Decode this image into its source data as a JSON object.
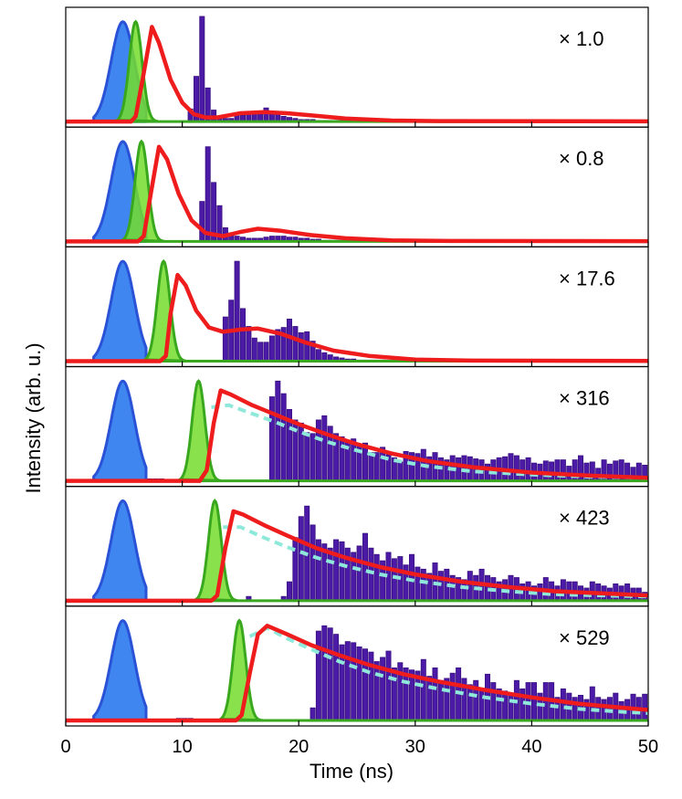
{
  "chart_data": {
    "type": "histogram-with-fits",
    "xlabel": "Time (ns)",
    "ylabel": "Intensity (arb. u.)",
    "xlim": [
      0,
      50
    ],
    "xticks": [
      0,
      10,
      20,
      30,
      40,
      50
    ],
    "tick_labels": [
      "0",
      "10",
      "20",
      "30",
      "40",
      "50"
    ],
    "colors": {
      "bars": "#4b1aa6",
      "bar_edge": "#3a1080",
      "pump": "#3f86f0",
      "pump_edge": "#2a52d6",
      "green": "#39a81f",
      "green_fill": "#74dd2c",
      "fit": "#ee1c1c",
      "dashed": "#8fe9da"
    },
    "panels": [
      {
        "scale_label": "× 1.0",
        "onset": 5.6,
        "bars": [
          0,
          0,
          0,
          0,
          0,
          0,
          0,
          0,
          0,
          0,
          0,
          0,
          0,
          0,
          0,
          0,
          0,
          0,
          0,
          0,
          0,
          0.12,
          0.43,
          1.0,
          0.32,
          0.11,
          0.04,
          0.03,
          0.03,
          0.06,
          0.06,
          0.08,
          0.09,
          0.1,
          0.13,
          0.09,
          0.08,
          0.05,
          0.04,
          0.03,
          0.02,
          0.02,
          0.02,
          0.01,
          0.01,
          0.01,
          0.01,
          0.01,
          0.01,
          0,
          0,
          0,
          0,
          0,
          0,
          0,
          0,
          0,
          0,
          0,
          0,
          0,
          0,
          0,
          0,
          0,
          0,
          0,
          0,
          0,
          0,
          0,
          0,
          0,
          0,
          0,
          0,
          0,
          0,
          0,
          0,
          0,
          0,
          0,
          0,
          0,
          0,
          0,
          0,
          0,
          0,
          0,
          0,
          0,
          0,
          0,
          0,
          0,
          0,
          0,
          0,
          0,
          0,
          0
        ],
        "fit": [
          [
            5.6,
            0
          ],
          [
            6.0,
            0.05
          ],
          [
            6.6,
            0.4
          ],
          [
            7.4,
            0.9
          ],
          [
            8.0,
            0.75
          ],
          [
            9.0,
            0.4
          ],
          [
            10.0,
            0.18
          ],
          [
            11.0,
            0.07
          ],
          [
            12.0,
            0.04
          ],
          [
            13.0,
            0.04
          ],
          [
            15.0,
            0.08
          ],
          [
            17.0,
            0.09
          ],
          [
            19.0,
            0.08
          ],
          [
            21.0,
            0.06
          ],
          [
            24.0,
            0.03
          ],
          [
            28.0,
            0.01
          ],
          [
            32.0,
            0.005
          ],
          [
            50.0,
            0.002
          ]
        ],
        "dashed": null
      },
      {
        "scale_label": "× 0.8",
        "onset": 6.1,
        "bars": [
          0,
          0,
          0,
          0,
          0,
          0,
          0,
          0,
          0,
          0,
          0,
          0,
          0,
          0,
          0,
          0,
          0,
          0,
          0,
          0,
          0,
          0,
          0,
          0.38,
          0.9,
          0.56,
          0.34,
          0.13,
          0.08,
          0.05,
          0.04,
          0.03,
          0.03,
          0.03,
          0.04,
          0.05,
          0.05,
          0.05,
          0.04,
          0.04,
          0.03,
          0.03,
          0.02,
          0.02,
          0.01,
          0.01,
          0.01,
          0.01,
          0.01,
          0,
          0,
          0,
          0,
          0,
          0,
          0,
          0,
          0,
          0,
          0,
          0,
          0,
          0,
          0,
          0,
          0,
          0,
          0,
          0,
          0,
          0,
          0,
          0,
          0,
          0,
          0,
          0,
          0,
          0,
          0,
          0,
          0,
          0,
          0,
          0,
          0,
          0,
          0,
          0,
          0,
          0,
          0,
          0,
          0,
          0,
          0,
          0,
          0,
          0,
          0,
          0,
          0,
          0,
          0
        ],
        "fit": [
          [
            6.2,
            0
          ],
          [
            6.7,
            0.05
          ],
          [
            7.3,
            0.45
          ],
          [
            8.0,
            0.9
          ],
          [
            8.7,
            0.78
          ],
          [
            9.7,
            0.45
          ],
          [
            10.8,
            0.2
          ],
          [
            12.0,
            0.08
          ],
          [
            13.5,
            0.05
          ],
          [
            15.0,
            0.09
          ],
          [
            16.5,
            0.12
          ],
          [
            18.5,
            0.1
          ],
          [
            21.0,
            0.06
          ],
          [
            24.0,
            0.03
          ],
          [
            28.0,
            0.01
          ],
          [
            33.0,
            0.004
          ],
          [
            50.0,
            0.002
          ]
        ],
        "dashed": null
      },
      {
        "scale_label": "× 17.6",
        "onset": 8.0,
        "bars": [
          0,
          0,
          0,
          0,
          0,
          0,
          0,
          0,
          0,
          0,
          0,
          0,
          0,
          0,
          0,
          0,
          0,
          0,
          0,
          0,
          0,
          0,
          0,
          0,
          0,
          0,
          0,
          0.42,
          0.58,
          0.95,
          0.5,
          0.33,
          0.22,
          0.18,
          0.18,
          0.24,
          0.3,
          0.32,
          0.4,
          0.33,
          0.27,
          0.28,
          0.19,
          0.11,
          0.08,
          0.06,
          0.04,
          0.03,
          0.02,
          0.02,
          0.01,
          0.01,
          0.01,
          0.01,
          0.01,
          0,
          0,
          0,
          0,
          0,
          0,
          0,
          0,
          0,
          0,
          0,
          0,
          0,
          0,
          0,
          0,
          0,
          0,
          0,
          0,
          0,
          0,
          0,
          0,
          0,
          0,
          0,
          0,
          0,
          0,
          0,
          0,
          0,
          0,
          0,
          0,
          0,
          0,
          0,
          0,
          0,
          0,
          0,
          0,
          0,
          0,
          0,
          0,
          0
        ],
        "fit": [
          [
            8.1,
            0
          ],
          [
            8.6,
            0.05
          ],
          [
            9.0,
            0.45
          ],
          [
            9.6,
            0.82
          ],
          [
            10.3,
            0.72
          ],
          [
            11.2,
            0.48
          ],
          [
            12.3,
            0.32
          ],
          [
            13.5,
            0.28
          ],
          [
            15.0,
            0.3
          ],
          [
            16.5,
            0.31
          ],
          [
            18.5,
            0.26
          ],
          [
            20.5,
            0.18
          ],
          [
            23.0,
            0.1
          ],
          [
            26.0,
            0.05
          ],
          [
            30.0,
            0.015
          ],
          [
            35.0,
            0.005
          ],
          [
            50.0,
            0.002
          ]
        ],
        "dashed": null
      },
      {
        "scale_label": "× 316",
        "onset": 11.0,
        "bars": [
          0,
          0,
          0,
          0,
          0,
          0,
          0,
          0,
          0,
          0,
          0,
          0,
          0,
          0,
          0.02,
          0.02,
          0.02,
          0,
          0,
          0,
          0,
          0,
          0,
          0,
          0,
          0,
          0,
          0,
          0,
          0,
          0,
          0,
          0,
          0,
          0,
          0.8,
          0.95,
          0.83,
          0.68,
          0.58,
          0.55,
          0.46,
          0.45,
          0.58,
          0.62,
          0.52,
          0.45,
          0.42,
          0.38,
          0.4,
          0.33,
          0.36,
          0.27,
          0.27,
          0.32,
          0.25,
          0.22,
          0.18,
          0.28,
          0.27,
          0.26,
          0.3,
          0.23,
          0.27,
          0.22,
          0.2,
          0.24,
          0.22,
          0.24,
          0.23,
          0.21,
          0.2,
          0.16,
          0.2,
          0.22,
          0.23,
          0.26,
          0.24,
          0.2,
          0.22,
          0.17,
          0.16,
          0.19,
          0.18,
          0.2,
          0.2,
          0.14,
          0.2,
          0.24,
          0.17,
          0.18,
          0.12,
          0.2,
          0.16,
          0.19,
          0.2,
          0.17,
          0.13,
          0.17,
          0.15
        ],
        "fit": [
          [
            11.5,
            0
          ],
          [
            12.1,
            0.1
          ],
          [
            12.7,
            0.55
          ],
          [
            13.3,
            0.86
          ],
          [
            14.2,
            0.82
          ],
          [
            16.0,
            0.72
          ],
          [
            18.0,
            0.63
          ],
          [
            20.0,
            0.54
          ],
          [
            22.5,
            0.44
          ],
          [
            25.0,
            0.35
          ],
          [
            28.0,
            0.26
          ],
          [
            31.0,
            0.19
          ],
          [
            35.0,
            0.13
          ],
          [
            40.0,
            0.08
          ],
          [
            45.0,
            0.05
          ],
          [
            50.0,
            0.03
          ]
        ],
        "dashed": [
          [
            12.5,
            0.7
          ],
          [
            14.0,
            0.72
          ],
          [
            16.0,
            0.64
          ],
          [
            18.0,
            0.56
          ],
          [
            20.0,
            0.47
          ],
          [
            22.5,
            0.37
          ],
          [
            25.0,
            0.29
          ],
          [
            28.0,
            0.2
          ],
          [
            31.0,
            0.14
          ],
          [
            35.0,
            0.09
          ],
          [
            40.0,
            0.06
          ],
          [
            45.0,
            0.04
          ],
          [
            50.0,
            0.03
          ]
        ]
      },
      {
        "scale_label": "× 423",
        "onset": 12.4,
        "bars": [
          0,
          0,
          0,
          0,
          0,
          0,
          0,
          0,
          0,
          0,
          0,
          0,
          0,
          0,
          0,
          0,
          0,
          0,
          0,
          0,
          0,
          0,
          0,
          0,
          0,
          0,
          0,
          0,
          0,
          0,
          0,
          0.04,
          0,
          0,
          0,
          0,
          0,
          0.04,
          0.18,
          0.6,
          0.8,
          0.9,
          0.72,
          0.58,
          0.54,
          0.5,
          0.58,
          0.56,
          0.5,
          0.46,
          0.52,
          0.64,
          0.5,
          0.44,
          0.38,
          0.46,
          0.4,
          0.42,
          0.34,
          0.44,
          0.32,
          0.3,
          0.26,
          0.36,
          0.28,
          0.3,
          0.24,
          0.22,
          0.2,
          0.28,
          0.24,
          0.3,
          0.24,
          0.22,
          0.18,
          0.2,
          0.24,
          0.22,
          0.16,
          0.18,
          0.14,
          0.16,
          0.22,
          0.18,
          0.14,
          0.2,
          0.18,
          0.18,
          0.14,
          0.12,
          0.18,
          0.16,
          0.14,
          0.12,
          0.16,
          0.14,
          0.16,
          0.12,
          0.12,
          0.08
        ],
        "fit": [
          [
            12.5,
            0
          ],
          [
            13.0,
            0.05
          ],
          [
            13.7,
            0.5
          ],
          [
            14.4,
            0.85
          ],
          [
            15.2,
            0.82
          ],
          [
            17.0,
            0.72
          ],
          [
            19.0,
            0.62
          ],
          [
            21.5,
            0.5
          ],
          [
            24.0,
            0.41
          ],
          [
            27.0,
            0.32
          ],
          [
            30.0,
            0.25
          ],
          [
            34.0,
            0.18
          ],
          [
            38.0,
            0.13
          ],
          [
            42.0,
            0.09
          ],
          [
            46.0,
            0.07
          ],
          [
            50.0,
            0.05
          ]
        ],
        "dashed": [
          [
            13.5,
            0.7
          ],
          [
            15.0,
            0.7
          ],
          [
            17.0,
            0.6
          ],
          [
            19.0,
            0.51
          ],
          [
            21.5,
            0.41
          ],
          [
            24.0,
            0.33
          ],
          [
            27.0,
            0.25
          ],
          [
            30.0,
            0.19
          ],
          [
            34.0,
            0.13
          ],
          [
            38.0,
            0.09
          ],
          [
            42.0,
            0.06
          ],
          [
            46.0,
            0.05
          ],
          [
            50.0,
            0.04
          ]
        ]
      },
      {
        "scale_label": "× 529",
        "onset": 14.5,
        "bars": [
          0,
          0,
          0,
          0,
          0,
          0,
          0,
          0,
          0,
          0,
          0,
          0,
          0,
          0,
          0,
          0,
          0,
          0,
          0,
          0.02,
          0.02,
          0.02,
          0,
          0,
          0,
          0,
          0,
          0,
          0,
          0,
          0,
          0,
          0,
          0,
          0,
          0,
          0,
          0,
          0,
          0,
          0,
          0,
          0.12,
          0.85,
          0.9,
          0.88,
          0.82,
          0.72,
          0.75,
          0.74,
          0.7,
          0.68,
          0.65,
          0.56,
          0.6,
          0.66,
          0.5,
          0.55,
          0.5,
          0.48,
          0.47,
          0.58,
          0.42,
          0.5,
          0.38,
          0.4,
          0.45,
          0.5,
          0.4,
          0.34,
          0.38,
          0.3,
          0.44,
          0.36,
          0.3,
          0.28,
          0.26,
          0.38,
          0.3,
          0.36,
          0.36,
          0.26,
          0.36,
          0.36,
          0.22,
          0.3,
          0.26,
          0.22,
          0.24,
          0.2,
          0.32,
          0.22,
          0.2,
          0.22,
          0.26,
          0.18,
          0.2,
          0.25,
          0.22,
          0.25
        ],
        "fit": [
          [
            14.6,
            0
          ],
          [
            15.1,
            0.05
          ],
          [
            15.8,
            0.45
          ],
          [
            16.5,
            0.82
          ],
          [
            17.3,
            0.9
          ],
          [
            19.0,
            0.82
          ],
          [
            21.0,
            0.72
          ],
          [
            23.5,
            0.62
          ],
          [
            26.0,
            0.53
          ],
          [
            29.0,
            0.44
          ],
          [
            32.0,
            0.37
          ],
          [
            36.0,
            0.29
          ],
          [
            40.0,
            0.22
          ],
          [
            44.0,
            0.16
          ],
          [
            48.0,
            0.12
          ],
          [
            50.0,
            0.1
          ]
        ],
        "dashed": [
          [
            15.8,
            0.8
          ],
          [
            17.3,
            0.88
          ],
          [
            19.0,
            0.78
          ],
          [
            21.0,
            0.68
          ],
          [
            23.5,
            0.56
          ],
          [
            26.0,
            0.46
          ],
          [
            29.0,
            0.37
          ],
          [
            32.0,
            0.3
          ],
          [
            36.0,
            0.22
          ],
          [
            40.0,
            0.16
          ],
          [
            44.0,
            0.11
          ],
          [
            48.0,
            0.08
          ],
          [
            50.0,
            0.07
          ]
        ]
      }
    ]
  }
}
